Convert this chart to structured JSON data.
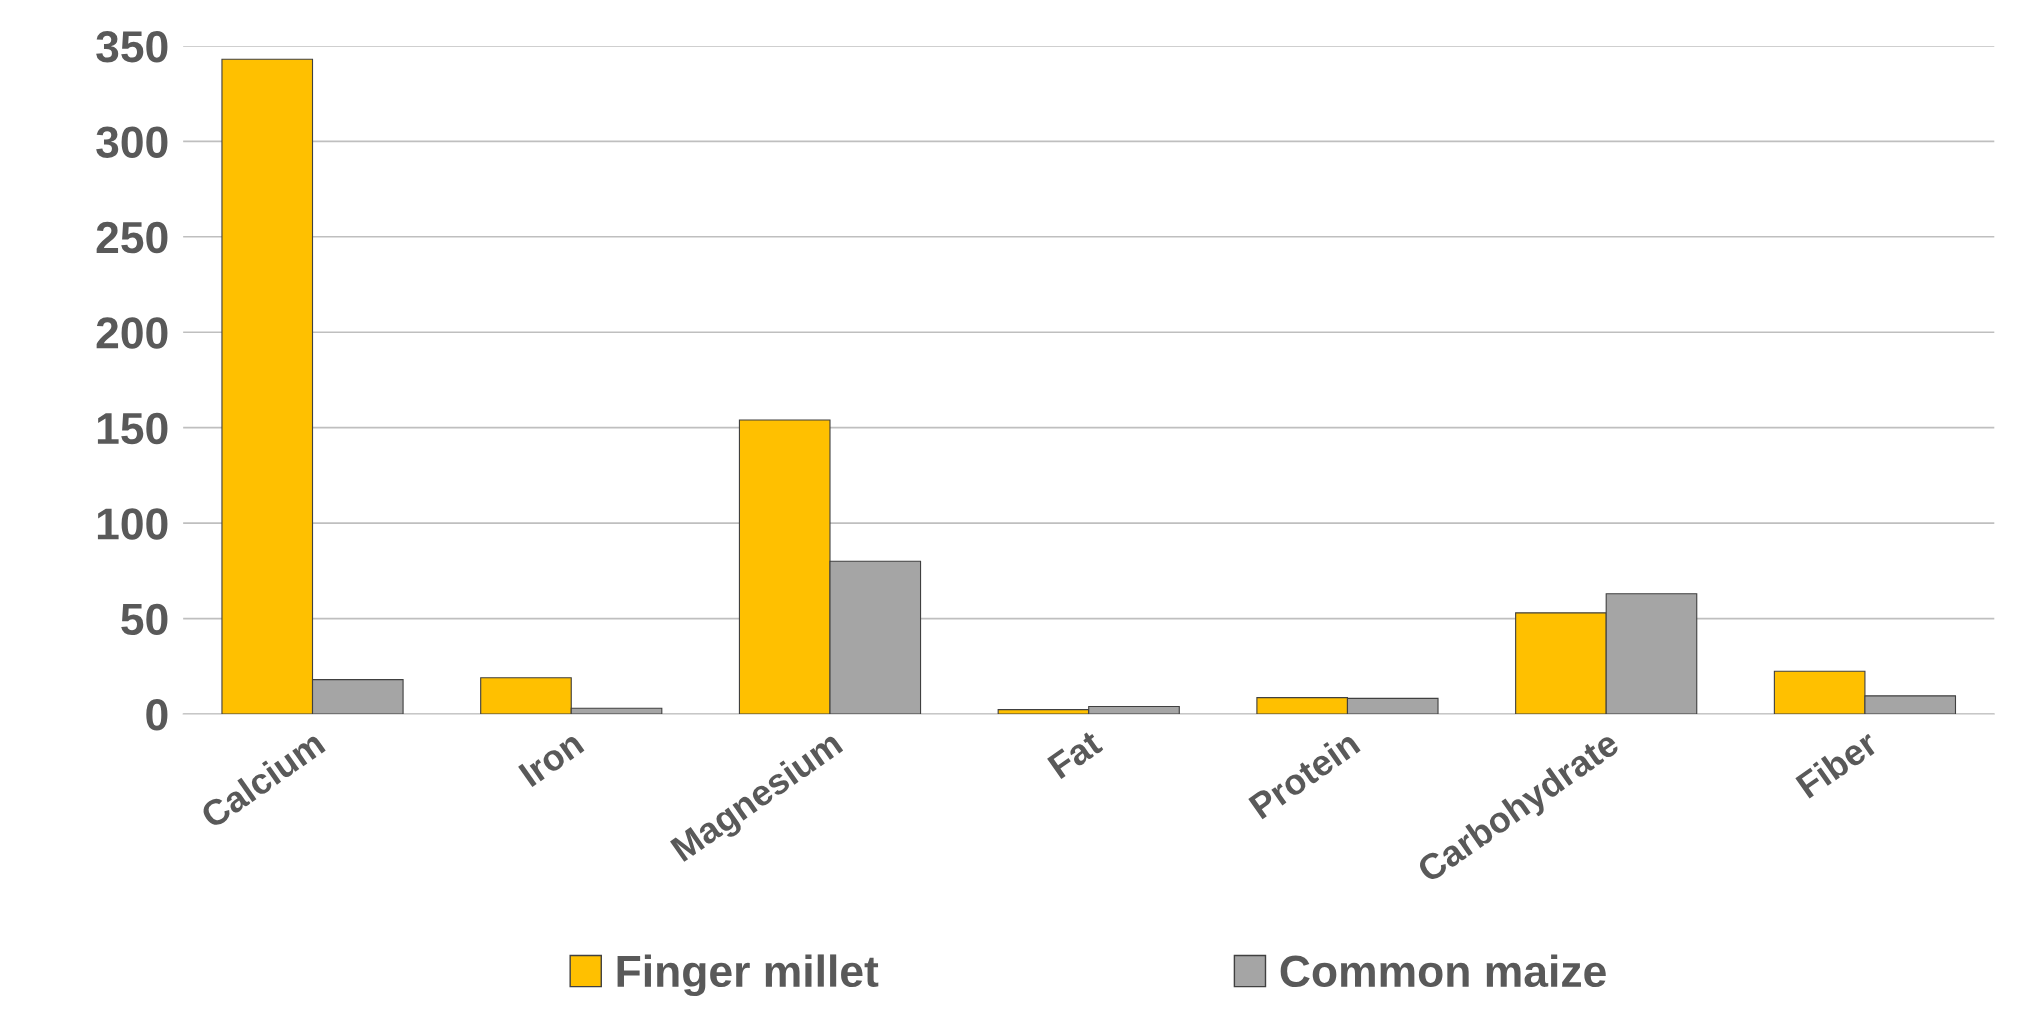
{
  "chart_data": {
    "type": "bar",
    "categories": [
      "Calcium",
      "Iron",
      "Magnesium",
      "Fat",
      "Protein",
      "Carbohydrate",
      "Fiber"
    ],
    "series": [
      {
        "name": "Finger millet",
        "color": "#ffc000",
        "values": [
          343,
          19,
          154,
          2.3,
          8.6,
          53,
          22.4
        ]
      },
      {
        "name": "Common maize",
        "color": "#a5a5a5",
        "values": [
          18,
          3,
          80,
          3.9,
          8.2,
          63,
          9.5
        ]
      }
    ],
    "ylim": [
      0,
      350
    ],
    "yticks": [
      0,
      50,
      100,
      150,
      200,
      250,
      300,
      350
    ],
    "grid": "y",
    "legend": "bottom"
  }
}
